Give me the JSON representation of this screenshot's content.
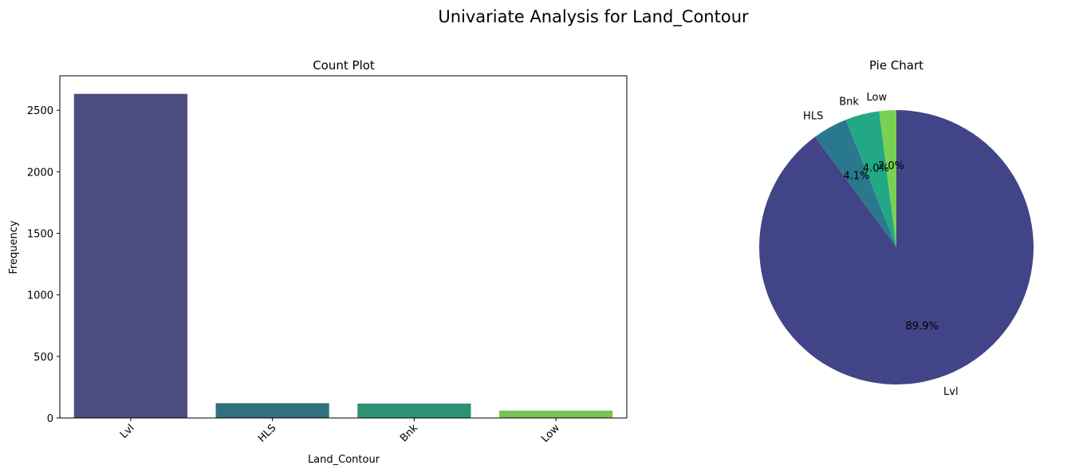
{
  "figure": {
    "title": "Univariate Analysis for Land_Contour"
  },
  "chart_data": [
    {
      "type": "bar",
      "title": "Count Plot",
      "xlabel": "Land_Contour",
      "ylabel": "Frequency",
      "categories": [
        "Lvl",
        "HLS",
        "Bnk",
        "Low"
      ],
      "values": [
        2633,
        120,
        117,
        60
      ],
      "colors": [
        "#4a4d7e",
        "#33707f",
        "#2f9174",
        "#79c456"
      ],
      "ylim": [
        0,
        2780
      ],
      "yticks": [
        0,
        500,
        1000,
        1500,
        2000,
        2500
      ],
      "ytick_labels": [
        "0",
        "500",
        "1000",
        "1500",
        "2000",
        "2500"
      ],
      "xtick_rotation": 45,
      "grid": false
    },
    {
      "type": "pie",
      "title": "Pie Chart",
      "labels": [
        "Lvl",
        "HLS",
        "Bnk",
        "Low"
      ],
      "values": [
        89.9,
        4.1,
        4.0,
        2.0
      ],
      "value_labels": [
        "89.9%",
        "4.1%",
        "4.0%",
        "2.0%"
      ],
      "colors": [
        "#414487",
        "#2a788e",
        "#22a884",
        "#7ad151"
      ],
      "startangle": 90,
      "counterclock": false
    }
  ]
}
